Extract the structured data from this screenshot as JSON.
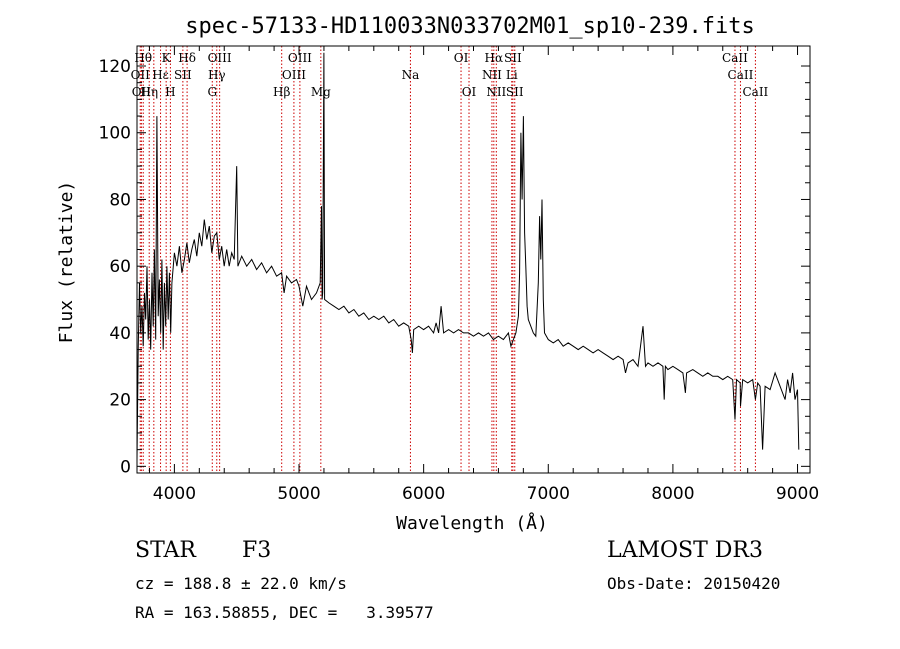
{
  "chart_data": {
    "type": "line",
    "title": "spec-57133-HD110033N033702M01_sp10-239.fits",
    "xlabel": "Wavelength (Å)",
    "ylabel": "Flux (relative)",
    "xlim": [
      3700,
      9100
    ],
    "ylim": [
      -2,
      126
    ],
    "xticks": [
      4000,
      5000,
      6000,
      7000,
      8000,
      9000
    ],
    "yticks": [
      0,
      20,
      40,
      60,
      80,
      100,
      120
    ],
    "series": [
      {
        "name": "spectrum",
        "points": [
          [
            3700,
            2
          ],
          [
            3710,
            35
          ],
          [
            3720,
            55
          ],
          [
            3730,
            40
          ],
          [
            3740,
            48
          ],
          [
            3750,
            36
          ],
          [
            3760,
            52
          ],
          [
            3770,
            44
          ],
          [
            3780,
            60
          ],
          [
            3790,
            38
          ],
          [
            3800,
            50
          ],
          [
            3810,
            35
          ],
          [
            3820,
            58
          ],
          [
            3830,
            42
          ],
          [
            3840,
            65
          ],
          [
            3850,
            38
          ],
          [
            3860,
            105
          ],
          [
            3870,
            45
          ],
          [
            3880,
            56
          ],
          [
            3890,
            40
          ],
          [
            3900,
            62
          ],
          [
            3910,
            35
          ],
          [
            3920,
            55
          ],
          [
            3930,
            42
          ],
          [
            3940,
            60
          ],
          [
            3950,
            44
          ],
          [
            3960,
            58
          ],
          [
            3970,
            40
          ],
          [
            3980,
            55
          ],
          [
            4000,
            64
          ],
          [
            4020,
            60
          ],
          [
            4040,
            66
          ],
          [
            4060,
            58
          ],
          [
            4080,
            62
          ],
          [
            4100,
            67
          ],
          [
            4120,
            61
          ],
          [
            4140,
            65
          ],
          [
            4160,
            68
          ],
          [
            4180,
            63
          ],
          [
            4200,
            70
          ],
          [
            4220,
            66
          ],
          [
            4240,
            74
          ],
          [
            4260,
            68
          ],
          [
            4280,
            72
          ],
          [
            4300,
            64
          ],
          [
            4320,
            69
          ],
          [
            4340,
            70
          ],
          [
            4360,
            62
          ],
          [
            4380,
            66
          ],
          [
            4400,
            60
          ],
          [
            4420,
            65
          ],
          [
            4440,
            60
          ],
          [
            4460,
            64
          ],
          [
            4480,
            62
          ],
          [
            4500,
            90
          ],
          [
            4510,
            60
          ],
          [
            4540,
            63
          ],
          [
            4580,
            60
          ],
          [
            4620,
            62
          ],
          [
            4660,
            59
          ],
          [
            4700,
            61
          ],
          [
            4740,
            58
          ],
          [
            4780,
            60
          ],
          [
            4820,
            57
          ],
          [
            4860,
            58
          ],
          [
            4880,
            52
          ],
          [
            4900,
            57
          ],
          [
            4940,
            55
          ],
          [
            4980,
            56
          ],
          [
            5000,
            54
          ],
          [
            5030,
            48
          ],
          [
            5060,
            54
          ],
          [
            5080,
            52
          ],
          [
            5100,
            50
          ],
          [
            5140,
            52
          ],
          [
            5170,
            55
          ],
          [
            5180,
            78
          ],
          [
            5185,
            50
          ],
          [
            5190,
            52
          ],
          [
            5200,
            124
          ],
          [
            5205,
            50
          ],
          [
            5240,
            49
          ],
          [
            5280,
            48
          ],
          [
            5320,
            47
          ],
          [
            5360,
            48
          ],
          [
            5400,
            46
          ],
          [
            5440,
            47
          ],
          [
            5480,
            45
          ],
          [
            5520,
            46
          ],
          [
            5560,
            44
          ],
          [
            5600,
            45
          ],
          [
            5640,
            44
          ],
          [
            5680,
            45
          ],
          [
            5720,
            43
          ],
          [
            5760,
            44
          ],
          [
            5800,
            42
          ],
          [
            5840,
            43
          ],
          [
            5880,
            42
          ],
          [
            5900,
            38
          ],
          [
            5910,
            34
          ],
          [
            5920,
            41
          ],
          [
            5960,
            42
          ],
          [
            6000,
            41
          ],
          [
            6040,
            42
          ],
          [
            6080,
            40
          ],
          [
            6100,
            43
          ],
          [
            6120,
            40
          ],
          [
            6140,
            48
          ],
          [
            6160,
            40
          ],
          [
            6200,
            41
          ],
          [
            6240,
            40
          ],
          [
            6280,
            41
          ],
          [
            6320,
            40
          ],
          [
            6360,
            40
          ],
          [
            6400,
            39
          ],
          [
            6440,
            40
          ],
          [
            6480,
            39
          ],
          [
            6520,
            40
          ],
          [
            6560,
            38
          ],
          [
            6600,
            39
          ],
          [
            6640,
            38
          ],
          [
            6680,
            40
          ],
          [
            6700,
            36
          ],
          [
            6720,
            38
          ],
          [
            6740,
            40
          ],
          [
            6760,
            45
          ],
          [
            6770,
            58
          ],
          [
            6780,
            100
          ],
          [
            6790,
            80
          ],
          [
            6800,
            105
          ],
          [
            6810,
            70
          ],
          [
            6820,
            60
          ],
          [
            6830,
            48
          ],
          [
            6840,
            44
          ],
          [
            6860,
            42
          ],
          [
            6880,
            40
          ],
          [
            6900,
            39
          ],
          [
            6920,
            55
          ],
          [
            6930,
            75
          ],
          [
            6940,
            62
          ],
          [
            6950,
            80
          ],
          [
            6960,
            50
          ],
          [
            6970,
            40
          ],
          [
            7000,
            38
          ],
          [
            7040,
            37
          ],
          [
            7080,
            38
          ],
          [
            7120,
            36
          ],
          [
            7160,
            37
          ],
          [
            7200,
            36
          ],
          [
            7240,
            35
          ],
          [
            7280,
            36
          ],
          [
            7320,
            35
          ],
          [
            7360,
            34
          ],
          [
            7400,
            35
          ],
          [
            7440,
            34
          ],
          [
            7480,
            33
          ],
          [
            7520,
            32
          ],
          [
            7560,
            33
          ],
          [
            7600,
            32
          ],
          [
            7620,
            28
          ],
          [
            7640,
            31
          ],
          [
            7680,
            32
          ],
          [
            7720,
            30
          ],
          [
            7760,
            42
          ],
          [
            7780,
            30
          ],
          [
            7800,
            31
          ],
          [
            7840,
            30
          ],
          [
            7880,
            31
          ],
          [
            7920,
            30
          ],
          [
            7930,
            20
          ],
          [
            7940,
            30
          ],
          [
            7960,
            29
          ],
          [
            8000,
            30
          ],
          [
            8040,
            29
          ],
          [
            8080,
            28
          ],
          [
            8100,
            22
          ],
          [
            8110,
            28
          ],
          [
            8160,
            29
          ],
          [
            8200,
            28
          ],
          [
            8240,
            27
          ],
          [
            8280,
            28
          ],
          [
            8320,
            27
          ],
          [
            8360,
            27
          ],
          [
            8400,
            26
          ],
          [
            8440,
            27
          ],
          [
            8480,
            26
          ],
          [
            8498,
            14
          ],
          [
            8510,
            26
          ],
          [
            8540,
            25
          ],
          [
            8542,
            18
          ],
          [
            8560,
            26
          ],
          [
            8600,
            25
          ],
          [
            8640,
            26
          ],
          [
            8662,
            20
          ],
          [
            8680,
            25
          ],
          [
            8700,
            24
          ],
          [
            8720,
            5
          ],
          [
            8740,
            24
          ],
          [
            8780,
            23
          ],
          [
            8820,
            28
          ],
          [
            8860,
            24
          ],
          [
            8880,
            22
          ],
          [
            8900,
            20
          ],
          [
            8920,
            26
          ],
          [
            8940,
            22
          ],
          [
            8960,
            28
          ],
          [
            8980,
            20
          ],
          [
            9000,
            23
          ],
          [
            9010,
            5
          ]
        ]
      }
    ],
    "line_marks": [
      {
        "wl": 3726,
        "label": "OII"
      },
      {
        "wl": 3735,
        "label": "OII"
      },
      {
        "wl": 3750,
        "label": "Hθ"
      },
      {
        "wl": 3798,
        "label": "Hη"
      },
      {
        "wl": 3835,
        "label": "Hζ"
      },
      {
        "wl": 3889,
        "label": "Hε"
      },
      {
        "wl": 3934,
        "label": "K"
      },
      {
        "wl": 3968,
        "label": "H"
      },
      {
        "wl": 4068,
        "label": "SII"
      },
      {
        "wl": 4102,
        "label": "Hδ"
      },
      {
        "wl": 4304,
        "label": "G"
      },
      {
        "wl": 4340,
        "label": "Hγ"
      },
      {
        "wl": 4363,
        "label": "OIII"
      },
      {
        "wl": 4861,
        "label": "Hβ"
      },
      {
        "wl": 4959,
        "label": "OIII"
      },
      {
        "wl": 5007,
        "label": "OIII"
      },
      {
        "wl": 5175,
        "label": "Mg"
      },
      {
        "wl": 5894,
        "label": "Na"
      },
      {
        "wl": 6300,
        "label": "OI"
      },
      {
        "wl": 6364,
        "label": "OI"
      },
      {
        "wl": 6548,
        "label": "NII"
      },
      {
        "wl": 6563,
        "label": "Hα"
      },
      {
        "wl": 6583,
        "label": "NII"
      },
      {
        "wl": 6707,
        "label": "Li"
      },
      {
        "wl": 6716,
        "label": "SII"
      },
      {
        "wl": 6731,
        "label": "SII"
      },
      {
        "wl": 8498,
        "label": "CaII"
      },
      {
        "wl": 8542,
        "label": "CaII"
      },
      {
        "wl": 8662,
        "label": "CaII"
      }
    ],
    "mark_labels": [
      {
        "text": "Hθ",
        "wl": 3750,
        "row": 0
      },
      {
        "text": "K",
        "wl": 3934,
        "row": 0
      },
      {
        "text": "Hδ",
        "wl": 4102,
        "row": 0
      },
      {
        "text": "OIII",
        "wl": 4363,
        "row": 0
      },
      {
        "text": "OIII",
        "wl": 5007,
        "row": 0
      },
      {
        "text": "OI",
        "wl": 6300,
        "row": 0
      },
      {
        "text": "Hα",
        "wl": 6563,
        "row": 0
      },
      {
        "text": "SII",
        "wl": 6716,
        "row": 0
      },
      {
        "text": "CaII",
        "wl": 8498,
        "row": 0
      },
      {
        "text": "OII",
        "wl": 3726,
        "row": 1
      },
      {
        "text": "Hε",
        "wl": 3889,
        "row": 1
      },
      {
        "text": "SII",
        "wl": 4068,
        "row": 1
      },
      {
        "text": "Hγ",
        "wl": 4340,
        "row": 1
      },
      {
        "text": "OIII",
        "wl": 4959,
        "row": 1
      },
      {
        "text": "Na",
        "wl": 5894,
        "row": 1
      },
      {
        "text": "NII",
        "wl": 6548,
        "row": 1
      },
      {
        "text": "Li",
        "wl": 6707,
        "row": 1
      },
      {
        "text": "CaII",
        "wl": 8542,
        "row": 1
      },
      {
        "text": "OII",
        "wl": 3735,
        "row": 2
      },
      {
        "text": "Hη",
        "wl": 3798,
        "row": 2
      },
      {
        "text": "H",
        "wl": 3968,
        "row": 2
      },
      {
        "text": "G",
        "wl": 4304,
        "row": 2
      },
      {
        "text": "Hβ",
        "wl": 4861,
        "row": 2
      },
      {
        "text": "Mg",
        "wl": 5175,
        "row": 2
      },
      {
        "text": "OI",
        "wl": 6364,
        "row": 2
      },
      {
        "text": "NII",
        "wl": 6583,
        "row": 2
      },
      {
        "text": "SII",
        "wl": 6731,
        "row": 2
      },
      {
        "text": "CaII",
        "wl": 8662,
        "row": 2
      }
    ],
    "colors": {
      "spectrum": "#000000",
      "marks": "#cc0000",
      "axes": "#000000"
    }
  },
  "info": {
    "class_label": "STAR",
    "subclass": "F3",
    "survey": "LAMOST DR3",
    "cz": "cz = 188.8 ± 22.0 km/s",
    "obs_date": "Obs-Date: 20150420",
    "radec": "RA = 163.58855, DEC =   3.39577"
  }
}
